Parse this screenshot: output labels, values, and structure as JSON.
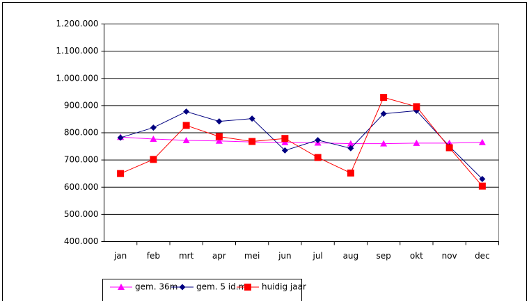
{
  "chart_data": {
    "type": "line",
    "categories": [
      "jan",
      "feb",
      "mrt",
      "apr",
      "mei",
      "jun",
      "jul",
      "aug",
      "sep",
      "okt",
      "nov",
      "dec"
    ],
    "series": [
      {
        "name": "gem. 36m",
        "color": "#ff00ff",
        "marker": "triangle",
        "values": [
          784000,
          777000,
          772000,
          770000,
          766000,
          765000,
          763000,
          760000,
          760000,
          762000,
          762000,
          765000
        ]
      },
      {
        "name": "gem. 5 id.m",
        "color": "#000080",
        "marker": "diamond",
        "values": [
          782000,
          819000,
          878000,
          842000,
          852000,
          735000,
          773000,
          743000,
          870000,
          881000,
          750000,
          630000
        ]
      },
      {
        "name": "huidig jaar",
        "color": "#ff0000",
        "marker": "square",
        "values": [
          650000,
          702000,
          827000,
          786000,
          768000,
          779000,
          709000,
          652000,
          930000,
          896000,
          745000,
          604000
        ]
      }
    ],
    "ylim": [
      400000,
      1200000
    ],
    "yticks": [
      {
        "value": 400000,
        "label": "400.000"
      },
      {
        "value": 500000,
        "label": "500.000"
      },
      {
        "value": 600000,
        "label": "600.000"
      },
      {
        "value": 700000,
        "label": "700.000"
      },
      {
        "value": 800000,
        "label": "800.000"
      },
      {
        "value": 900000,
        "label": "900.000"
      },
      {
        "value": 1000000,
        "label": "1.000.000"
      },
      {
        "value": 1100000,
        "label": "1.100.000"
      },
      {
        "value": 1200000,
        "label": "1.200.000"
      }
    ],
    "grid": true,
    "legend": "bottom"
  }
}
